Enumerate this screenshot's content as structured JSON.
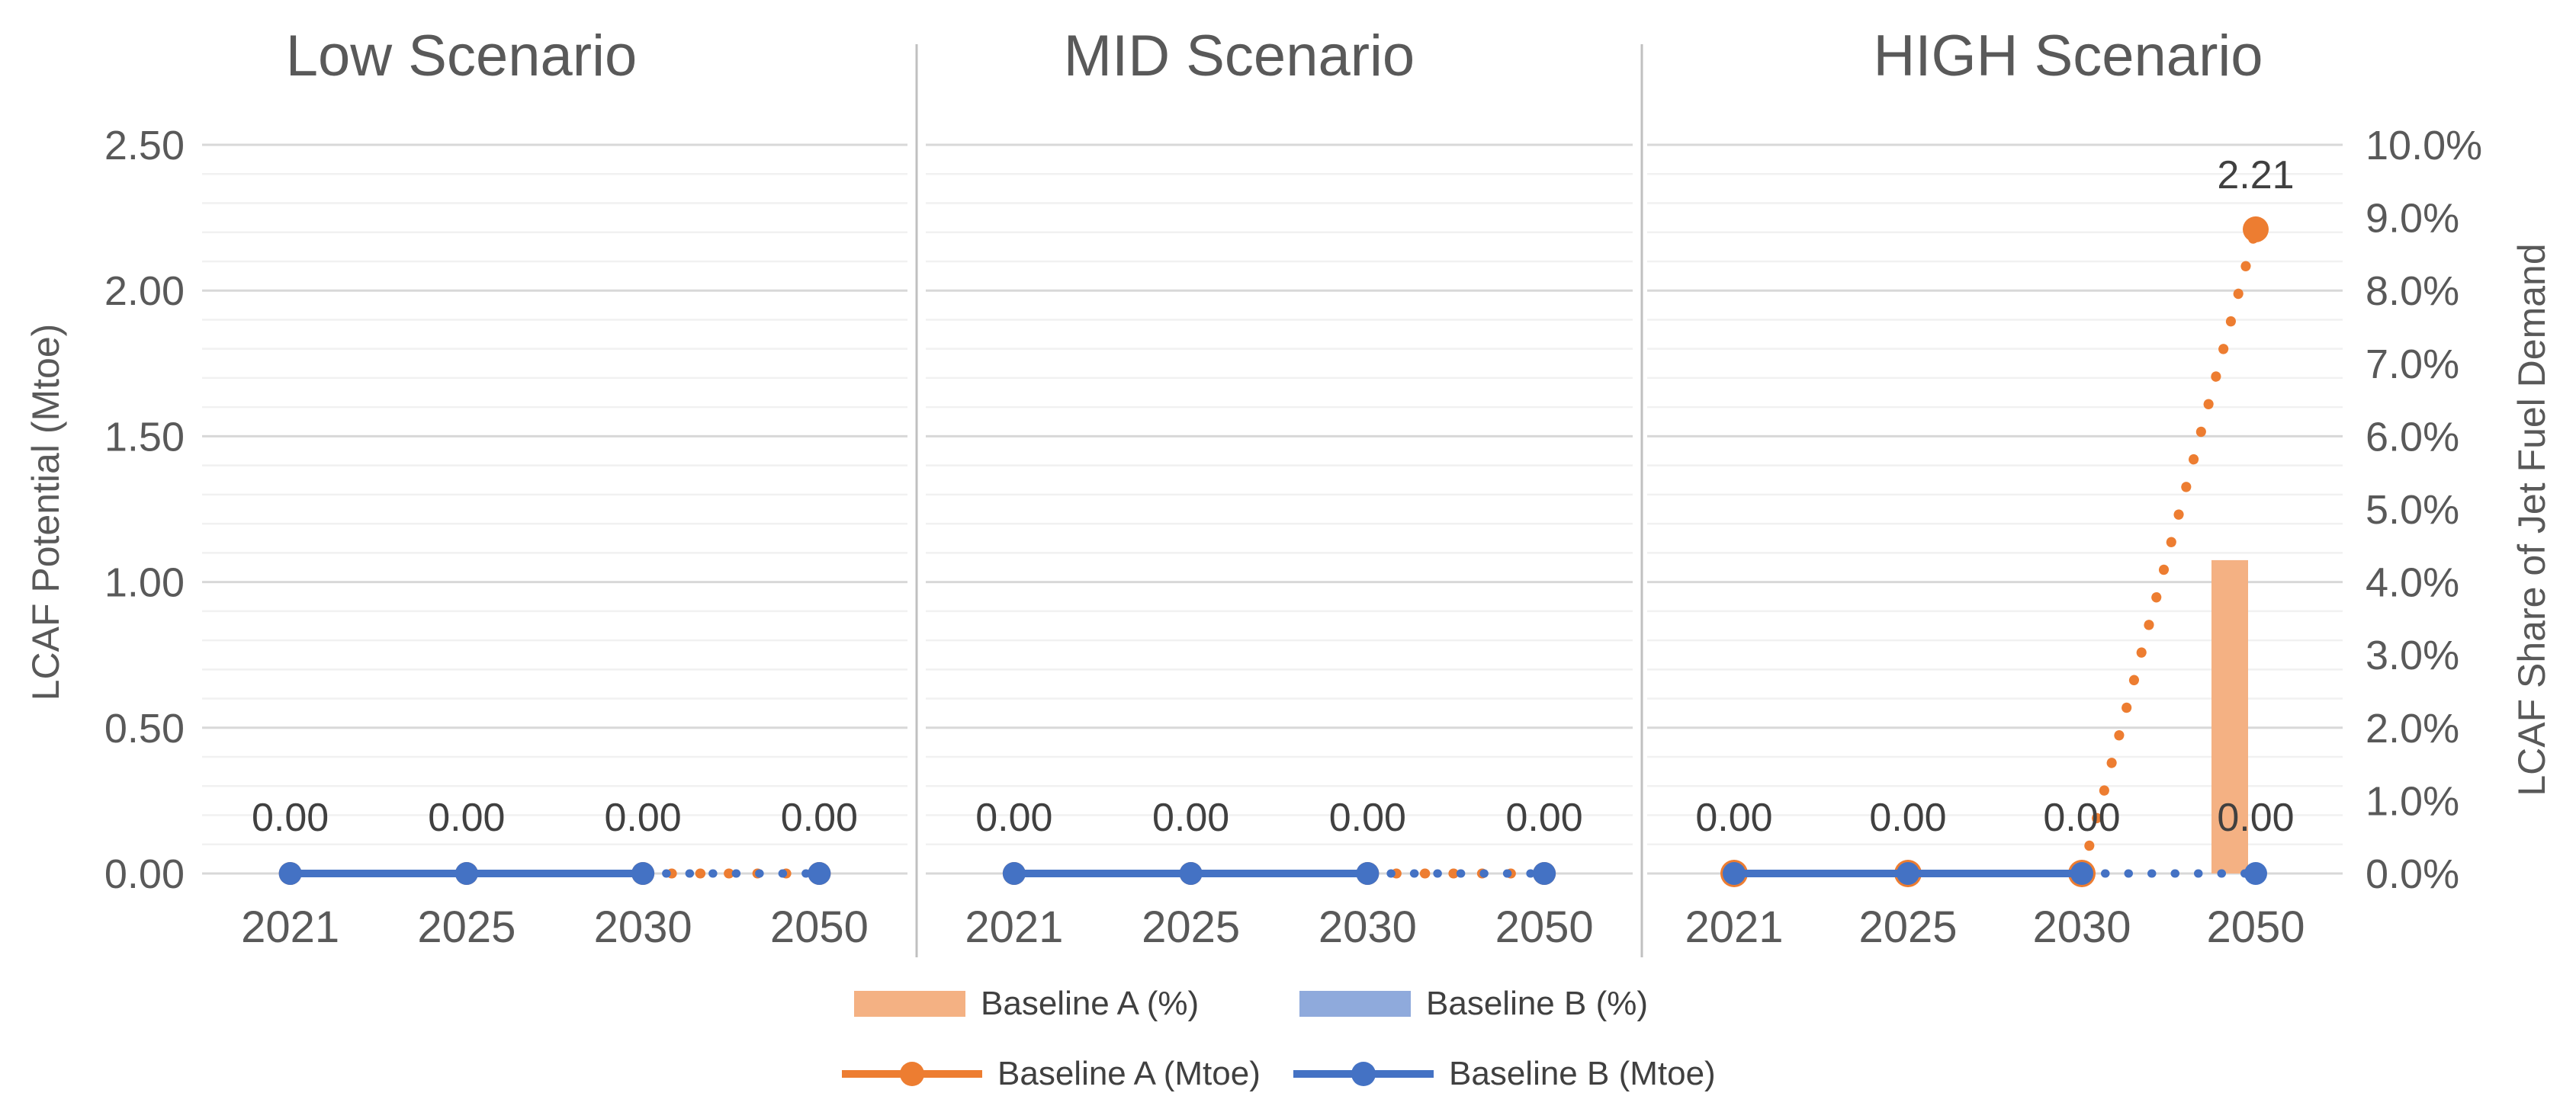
{
  "panel_titles": {
    "low": "Low Scenario",
    "mid": "MID Scenario",
    "high": "HIGH Scenario"
  },
  "axes": {
    "left": {
      "title": "LCAF Potential (Mtoe)",
      "ticks": [
        "2.50",
        "2.00",
        "1.50",
        "1.00",
        "0.50",
        "0.00"
      ]
    },
    "right": {
      "title": "LCAF Share of Jet Fuel Demand",
      "ticks": [
        "10.0%",
        "9.0%",
        "8.0%",
        "7.0%",
        "6.0%",
        "5.0%",
        "4.0%",
        "3.0%",
        "2.0%",
        "1.0%",
        "0.0%"
      ]
    },
    "x": {
      "categories": [
        "2021",
        "2025",
        "2030",
        "2050"
      ]
    }
  },
  "legend": [
    {
      "label": "Baseline A (%)",
      "marker": "bar",
      "color": "#F4B183"
    },
    {
      "label": "Baseline B (%)",
      "marker": "bar",
      "color": "#8FAADC"
    },
    {
      "label": "Baseline A (Mtoe)",
      "marker": "line",
      "color": "#ED7D31"
    },
    {
      "label": "Baseline B (Mtoe)",
      "marker": "line",
      "color": "#4472C4"
    }
  ],
  "colors": {
    "orange_line": "#ED7D31",
    "orange_bar": "#F4B183",
    "blue_line": "#4472C4",
    "blue_bar": "#8FAADC",
    "grid_major": "#D8D8D8",
    "grid_minor": "#F1F1F1",
    "panel_divider": "#C0C0C0",
    "tick_text": "#595959",
    "data_label_text": "#404040"
  },
  "grid": {
    "minor_step_mtoe": 0.1,
    "major_step_mtoe": 0.5
  },
  "chart_data": [
    {
      "type": "bar",
      "subtype": "combo bar+line, dual axis",
      "title": "Low Scenario",
      "x": [
        "2021",
        "2025",
        "2030",
        "2050"
      ],
      "y_left": {
        "label": "LCAF Potential (Mtoe)",
        "range": [
          0,
          2.5
        ]
      },
      "y_right": {
        "label": "LCAF Share of Jet Fuel Demand",
        "range_pct": [
          0,
          10
        ]
      },
      "line_style_note": "lines solid 2021-2030, dotted 2030-2050",
      "series": [
        {
          "name": "Baseline A (%)",
          "type": "bar",
          "axis": "right",
          "color": "#F4B183",
          "values": [
            0,
            0,
            0,
            0
          ]
        },
        {
          "name": "Baseline B (%)",
          "type": "bar",
          "axis": "right",
          "color": "#8FAADC",
          "values": [
            0,
            0,
            0,
            0
          ]
        },
        {
          "name": "Baseline A (Mtoe)",
          "type": "line",
          "axis": "left",
          "color": "#ED7D31",
          "values": [
            0,
            0,
            0,
            0
          ],
          "labels": [
            "",
            "",
            "",
            ""
          ]
        },
        {
          "name": "Baseline B (Mtoe)",
          "type": "line",
          "axis": "left",
          "color": "#4472C4",
          "values": [
            0,
            0,
            0,
            0
          ],
          "labels": [
            "0.00",
            "0.00",
            "0.00",
            "0.00"
          ]
        }
      ]
    },
    {
      "type": "bar",
      "subtype": "combo bar+line, dual axis",
      "title": "MID Scenario",
      "x": [
        "2021",
        "2025",
        "2030",
        "2050"
      ],
      "y_left": {
        "label": "LCAF Potential (Mtoe)",
        "range": [
          0,
          2.5
        ]
      },
      "y_right": {
        "label": "LCAF Share of Jet Fuel Demand",
        "range_pct": [
          0,
          10
        ]
      },
      "line_style_note": "lines solid 2021-2030, dotted 2030-2050",
      "series": [
        {
          "name": "Baseline A (%)",
          "type": "bar",
          "axis": "right",
          "color": "#F4B183",
          "values": [
            0,
            0,
            0,
            0
          ]
        },
        {
          "name": "Baseline B (%)",
          "type": "bar",
          "axis": "right",
          "color": "#8FAADC",
          "values": [
            0,
            0,
            0,
            0
          ]
        },
        {
          "name": "Baseline A (Mtoe)",
          "type": "line",
          "axis": "left",
          "color": "#ED7D31",
          "values": [
            0,
            0,
            0,
            0
          ],
          "labels": [
            "",
            "",
            "",
            ""
          ]
        },
        {
          "name": "Baseline B (Mtoe)",
          "type": "line",
          "axis": "left",
          "color": "#4472C4",
          "values": [
            0,
            0,
            0,
            0
          ],
          "labels": [
            "0.00",
            "0.00",
            "0.00",
            "0.00"
          ]
        }
      ]
    },
    {
      "type": "bar",
      "subtype": "combo bar+line, dual axis",
      "title": "HIGH Scenario",
      "x": [
        "2021",
        "2025",
        "2030",
        "2050"
      ],
      "y_left": {
        "label": "LCAF Potential (Mtoe)",
        "range": [
          0,
          2.5
        ]
      },
      "y_right": {
        "label": "LCAF Share of Jet Fuel Demand",
        "range_pct": [
          0,
          10
        ]
      },
      "line_style_note": "lines solid 2021-2030, dotted 2030-2050",
      "series": [
        {
          "name": "Baseline A (%)",
          "type": "bar",
          "axis": "right",
          "color": "#F4B183",
          "values": [
            0,
            0,
            0,
            4.3
          ]
        },
        {
          "name": "Baseline B (%)",
          "type": "bar",
          "axis": "right",
          "color": "#8FAADC",
          "values": [
            0,
            0,
            0,
            0
          ]
        },
        {
          "name": "Baseline A (Mtoe)",
          "type": "line",
          "axis": "left",
          "color": "#ED7D31",
          "values": [
            0,
            0,
            0,
            2.21
          ],
          "labels": [
            "",
            "",
            "",
            "2.21"
          ]
        },
        {
          "name": "Baseline B (Mtoe)",
          "type": "line",
          "axis": "left",
          "color": "#4472C4",
          "values": [
            0,
            0,
            0,
            0
          ],
          "labels": [
            "0.00",
            "0.00",
            "0.00",
            "0.00"
          ]
        }
      ]
    }
  ]
}
